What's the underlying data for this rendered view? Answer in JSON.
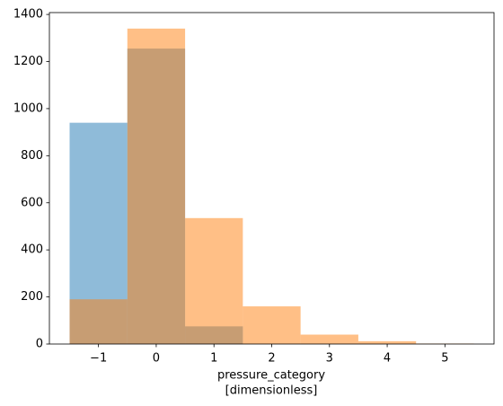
{
  "chart_data": {
    "type": "histogram",
    "xlabel": [
      "pressure_category",
      "[dimensionless]"
    ],
    "bins": [
      -1.5,
      -0.5,
      0.5,
      1.5,
      2.5,
      3.5,
      4.5,
      5.5
    ],
    "series": [
      {
        "color": "#1f77b4",
        "values": [
          940,
          1255,
          75,
          0,
          0,
          0,
          0
        ]
      },
      {
        "color": "#ff7f0e",
        "values": [
          190,
          1340,
          535,
          160,
          40,
          12,
          2
        ]
      }
    ],
    "opacity": 0.5,
    "xlim": [
      -1.85,
      5.85
    ],
    "ylim": [
      0,
      1408
    ],
    "xticks": [
      {
        "value": -1,
        "label": "−1"
      },
      0,
      1,
      2,
      3,
      4,
      5
    ],
    "yticks": [
      0,
      200,
      400,
      600,
      800,
      1000,
      1200,
      1400
    ]
  }
}
